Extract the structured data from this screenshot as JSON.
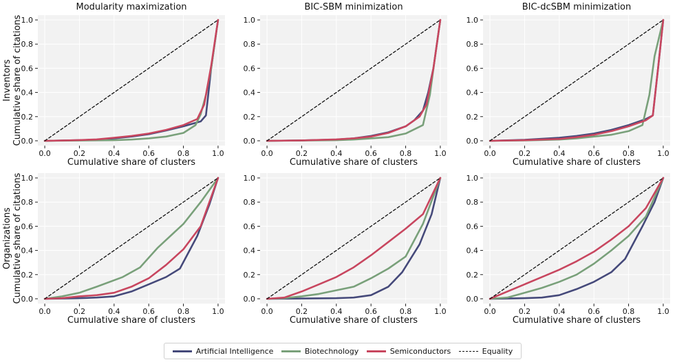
{
  "colors": {
    "ai": "#45497a",
    "bio": "#79a07a",
    "semi": "#c8465f",
    "equality": "#111111",
    "panel_bg": "#f2f2f2",
    "grid": "#ffffff"
  },
  "row_labels": [
    [
      "Inventors",
      "Cumulative share of citations"
    ],
    [
      "Organizations",
      "Cumulative share of citations"
    ]
  ],
  "legend": [
    {
      "key": "ai",
      "label": "Artificial Intelligence",
      "style": "solid"
    },
    {
      "key": "bio",
      "label": "Biotechnology",
      "style": "solid"
    },
    {
      "key": "semi",
      "label": "Semiconductors",
      "style": "solid"
    },
    {
      "key": "equality",
      "label": "Equality",
      "style": "dashed"
    }
  ],
  "chart_data": [
    {
      "type": "line",
      "row": 0,
      "col": 0,
      "title": "Modularity maximization",
      "xlabel": "Cumulative share of clusters",
      "ylabel": "Cumulative share of citations",
      "xlim": [
        -0.04,
        1.04
      ],
      "ylim": [
        -0.04,
        1.04
      ],
      "xticks": [
        "0.0",
        "0.2",
        "0.4",
        "0.6",
        "0.8",
        "1.0"
      ],
      "yticks": [
        "0.0",
        "0.2",
        "0.4",
        "0.6",
        "0.8",
        "1.0"
      ],
      "grid": true,
      "series": [
        {
          "name": "Artificial Intelligence",
          "key": "ai",
          "x": [
            0,
            0.1,
            0.2,
            0.3,
            0.4,
            0.5,
            0.6,
            0.7,
            0.8,
            0.9,
            0.93,
            0.96,
            1.0
          ],
          "y": [
            0,
            0.002,
            0.005,
            0.01,
            0.02,
            0.035,
            0.055,
            0.085,
            0.12,
            0.16,
            0.21,
            0.6,
            1.0
          ]
        },
        {
          "name": "Biotechnology",
          "key": "bio",
          "x": [
            0,
            0.2,
            0.4,
            0.5,
            0.6,
            0.7,
            0.8,
            0.87,
            0.9,
            0.93,
            0.96,
            1.0
          ],
          "y": [
            0,
            0.002,
            0.005,
            0.01,
            0.02,
            0.035,
            0.065,
            0.13,
            0.22,
            0.38,
            0.6,
            1.0
          ]
        },
        {
          "name": "Semiconductors",
          "key": "semi",
          "x": [
            0,
            0.1,
            0.2,
            0.3,
            0.4,
            0.5,
            0.6,
            0.7,
            0.8,
            0.88,
            0.92,
            0.96,
            1.0
          ],
          "y": [
            0,
            0.002,
            0.006,
            0.012,
            0.025,
            0.04,
            0.06,
            0.09,
            0.13,
            0.18,
            0.3,
            0.62,
            1.0
          ]
        },
        {
          "name": "Equality",
          "key": "equality",
          "dashed": true,
          "x": [
            0,
            1
          ],
          "y": [
            0,
            1
          ]
        }
      ]
    },
    {
      "type": "line",
      "row": 0,
      "col": 1,
      "title": "BIC-SBM minimization",
      "xlabel": "Cumulative share of clusters",
      "ylabel": "Cumulative share of citations",
      "xlim": [
        -0.04,
        1.04
      ],
      "ylim": [
        -0.04,
        1.04
      ],
      "xticks": [
        "0.0",
        "0.2",
        "0.4",
        "0.6",
        "0.8",
        "1.0"
      ],
      "yticks": [
        "0.0",
        "0.2",
        "0.4",
        "0.6",
        "0.8",
        "1.0"
      ],
      "grid": true,
      "series": [
        {
          "name": "Artificial Intelligence",
          "key": "ai",
          "x": [
            0,
            0.2,
            0.4,
            0.5,
            0.6,
            0.7,
            0.8,
            0.85,
            0.9,
            0.93,
            0.96,
            1.0
          ],
          "y": [
            0,
            0.003,
            0.01,
            0.02,
            0.04,
            0.07,
            0.12,
            0.17,
            0.25,
            0.4,
            0.6,
            1.0
          ]
        },
        {
          "name": "Biotechnology",
          "key": "bio",
          "x": [
            0,
            0.2,
            0.4,
            0.5,
            0.6,
            0.7,
            0.8,
            0.9,
            0.94,
            0.97,
            1.0
          ],
          "y": [
            0,
            0.002,
            0.005,
            0.01,
            0.02,
            0.03,
            0.06,
            0.13,
            0.38,
            0.7,
            1.0
          ]
        },
        {
          "name": "Semiconductors",
          "key": "semi",
          "x": [
            0,
            0.2,
            0.4,
            0.5,
            0.6,
            0.7,
            0.8,
            0.88,
            0.92,
            0.96,
            1.0
          ],
          "y": [
            0,
            0.003,
            0.012,
            0.02,
            0.035,
            0.065,
            0.12,
            0.2,
            0.3,
            0.6,
            1.0
          ]
        },
        {
          "name": "Equality",
          "key": "equality",
          "dashed": true,
          "x": [
            0,
            1
          ],
          "y": [
            0,
            1
          ]
        }
      ]
    },
    {
      "type": "line",
      "row": 0,
      "col": 2,
      "title": "BIC-dcSBM minimization",
      "xlabel": "Cumulative share of clusters",
      "ylabel": "Cumulative share of citations",
      "xlim": [
        -0.04,
        1.04
      ],
      "ylim": [
        -0.04,
        1.04
      ],
      "xticks": [
        "0.0",
        "0.2",
        "0.4",
        "0.6",
        "0.8",
        "1.0"
      ],
      "yticks": [
        "0.0",
        "0.2",
        "0.4",
        "0.6",
        "0.8",
        "1.0"
      ],
      "grid": true,
      "series": [
        {
          "name": "Artificial Intelligence",
          "key": "ai",
          "x": [
            0,
            0.2,
            0.4,
            0.5,
            0.6,
            0.7,
            0.8,
            0.9,
            0.94,
            0.97,
            1.0
          ],
          "y": [
            0,
            0.008,
            0.025,
            0.04,
            0.06,
            0.09,
            0.13,
            0.18,
            0.21,
            0.6,
            1.0
          ]
        },
        {
          "name": "Biotechnology",
          "key": "bio",
          "x": [
            0,
            0.2,
            0.4,
            0.5,
            0.6,
            0.7,
            0.8,
            0.88,
            0.92,
            0.95,
            1.0
          ],
          "y": [
            0,
            0.003,
            0.01,
            0.02,
            0.035,
            0.05,
            0.08,
            0.13,
            0.38,
            0.7,
            1.0
          ]
        },
        {
          "name": "Semiconductors",
          "key": "semi",
          "x": [
            0,
            0.2,
            0.4,
            0.5,
            0.6,
            0.7,
            0.8,
            0.9,
            0.94,
            0.97,
            1.0
          ],
          "y": [
            0,
            0.005,
            0.015,
            0.03,
            0.05,
            0.08,
            0.12,
            0.17,
            0.21,
            0.6,
            1.0
          ]
        },
        {
          "name": "Equality",
          "key": "equality",
          "dashed": true,
          "x": [
            0,
            1
          ],
          "y": [
            0,
            1
          ]
        }
      ]
    },
    {
      "type": "line",
      "row": 1,
      "col": 0,
      "title": "",
      "xlabel": "Cumulative share of clusters",
      "ylabel": "Cumulative share of citations",
      "xlim": [
        -0.04,
        1.04
      ],
      "ylim": [
        -0.04,
        1.04
      ],
      "xticks": [
        "0.0",
        "0.2",
        "0.4",
        "0.6",
        "0.8",
        "1.0"
      ],
      "yticks": [
        "0.0",
        "0.2",
        "0.4",
        "0.6",
        "0.8",
        "1.0"
      ],
      "grid": true,
      "series": [
        {
          "name": "Artificial Intelligence",
          "key": "ai",
          "x": [
            0,
            0.1,
            0.2,
            0.3,
            0.4,
            0.5,
            0.6,
            0.7,
            0.78,
            0.88,
            0.95,
            1.0
          ],
          "y": [
            0,
            0.002,
            0.005,
            0.01,
            0.02,
            0.06,
            0.12,
            0.18,
            0.25,
            0.52,
            0.78,
            1.0
          ]
        },
        {
          "name": "Biotechnology",
          "key": "bio",
          "x": [
            0,
            0.1,
            0.2,
            0.3,
            0.45,
            0.55,
            0.65,
            0.8,
            0.9,
            1.0
          ],
          "y": [
            0,
            0.02,
            0.05,
            0.1,
            0.18,
            0.26,
            0.42,
            0.62,
            0.8,
            1.0
          ]
        },
        {
          "name": "Semiconductors",
          "key": "semi",
          "x": [
            0,
            0.1,
            0.2,
            0.3,
            0.4,
            0.5,
            0.6,
            0.7,
            0.8,
            0.9,
            1.0
          ],
          "y": [
            0,
            0.005,
            0.02,
            0.03,
            0.05,
            0.1,
            0.17,
            0.28,
            0.41,
            0.6,
            1.0
          ]
        },
        {
          "name": "Equality",
          "key": "equality",
          "dashed": true,
          "x": [
            0,
            1
          ],
          "y": [
            0,
            1
          ]
        }
      ]
    },
    {
      "type": "line",
      "row": 1,
      "col": 1,
      "title": "",
      "xlabel": "Cumulative share of clusters",
      "ylabel": "Cumulative share of citations",
      "xlim": [
        -0.04,
        1.04
      ],
      "ylim": [
        -0.04,
        1.04
      ],
      "xticks": [
        "0.0",
        "0.2",
        "0.4",
        "0.6",
        "0.8",
        "1.0"
      ],
      "yticks": [
        "0.0",
        "0.2",
        "0.4",
        "0.6",
        "0.8",
        "1.0"
      ],
      "grid": true,
      "series": [
        {
          "name": "Artificial Intelligence",
          "key": "ai",
          "x": [
            0,
            0.2,
            0.4,
            0.5,
            0.6,
            0.7,
            0.78,
            0.88,
            0.95,
            1.0
          ],
          "y": [
            0,
            0.002,
            0.005,
            0.01,
            0.03,
            0.1,
            0.22,
            0.45,
            0.7,
            1.0
          ]
        },
        {
          "name": "Biotechnology",
          "key": "bio",
          "x": [
            0,
            0.1,
            0.2,
            0.3,
            0.4,
            0.5,
            0.6,
            0.7,
            0.8,
            0.9,
            1.0
          ],
          "y": [
            0,
            0.005,
            0.02,
            0.04,
            0.07,
            0.1,
            0.17,
            0.25,
            0.35,
            0.62,
            1.0
          ]
        },
        {
          "name": "Semiconductors",
          "key": "semi",
          "x": [
            0,
            0.1,
            0.2,
            0.3,
            0.4,
            0.5,
            0.6,
            0.7,
            0.8,
            0.9,
            1.0
          ],
          "y": [
            0,
            0.01,
            0.06,
            0.12,
            0.18,
            0.26,
            0.36,
            0.47,
            0.58,
            0.7,
            1.0
          ]
        },
        {
          "name": "Equality",
          "key": "equality",
          "dashed": true,
          "x": [
            0,
            1
          ],
          "y": [
            0,
            1
          ]
        }
      ]
    },
    {
      "type": "line",
      "row": 1,
      "col": 2,
      "title": "",
      "xlabel": "Cumulative share of clusters",
      "ylabel": "Cumulative share of citations",
      "xlim": [
        -0.04,
        1.04
      ],
      "ylim": [
        -0.04,
        1.04
      ],
      "xticks": [
        "0.0",
        "0.2",
        "0.4",
        "0.6",
        "0.8",
        "1.0"
      ],
      "yticks": [
        "0.0",
        "0.2",
        "0.4",
        "0.6",
        "0.8",
        "1.0"
      ],
      "grid": true,
      "series": [
        {
          "name": "Artificial Intelligence",
          "key": "ai",
          "x": [
            0,
            0.1,
            0.2,
            0.3,
            0.4,
            0.5,
            0.6,
            0.7,
            0.78,
            0.88,
            0.95,
            1.0
          ],
          "y": [
            0,
            0.002,
            0.005,
            0.01,
            0.03,
            0.08,
            0.14,
            0.22,
            0.33,
            0.6,
            0.8,
            1.0
          ]
        },
        {
          "name": "Biotechnology",
          "key": "bio",
          "x": [
            0,
            0.1,
            0.2,
            0.3,
            0.4,
            0.5,
            0.6,
            0.7,
            0.8,
            0.9,
            1.0
          ],
          "y": [
            0,
            0.01,
            0.05,
            0.09,
            0.14,
            0.2,
            0.29,
            0.4,
            0.52,
            0.68,
            1.0
          ]
        },
        {
          "name": "Semiconductors",
          "key": "semi",
          "x": [
            0,
            0.1,
            0.2,
            0.3,
            0.4,
            0.5,
            0.6,
            0.7,
            0.8,
            0.9,
            1.0
          ],
          "y": [
            0,
            0.06,
            0.12,
            0.18,
            0.24,
            0.31,
            0.39,
            0.49,
            0.6,
            0.75,
            1.0
          ]
        },
        {
          "name": "Equality",
          "key": "equality",
          "dashed": true,
          "x": [
            0,
            1
          ],
          "y": [
            0,
            1
          ]
        }
      ]
    }
  ]
}
